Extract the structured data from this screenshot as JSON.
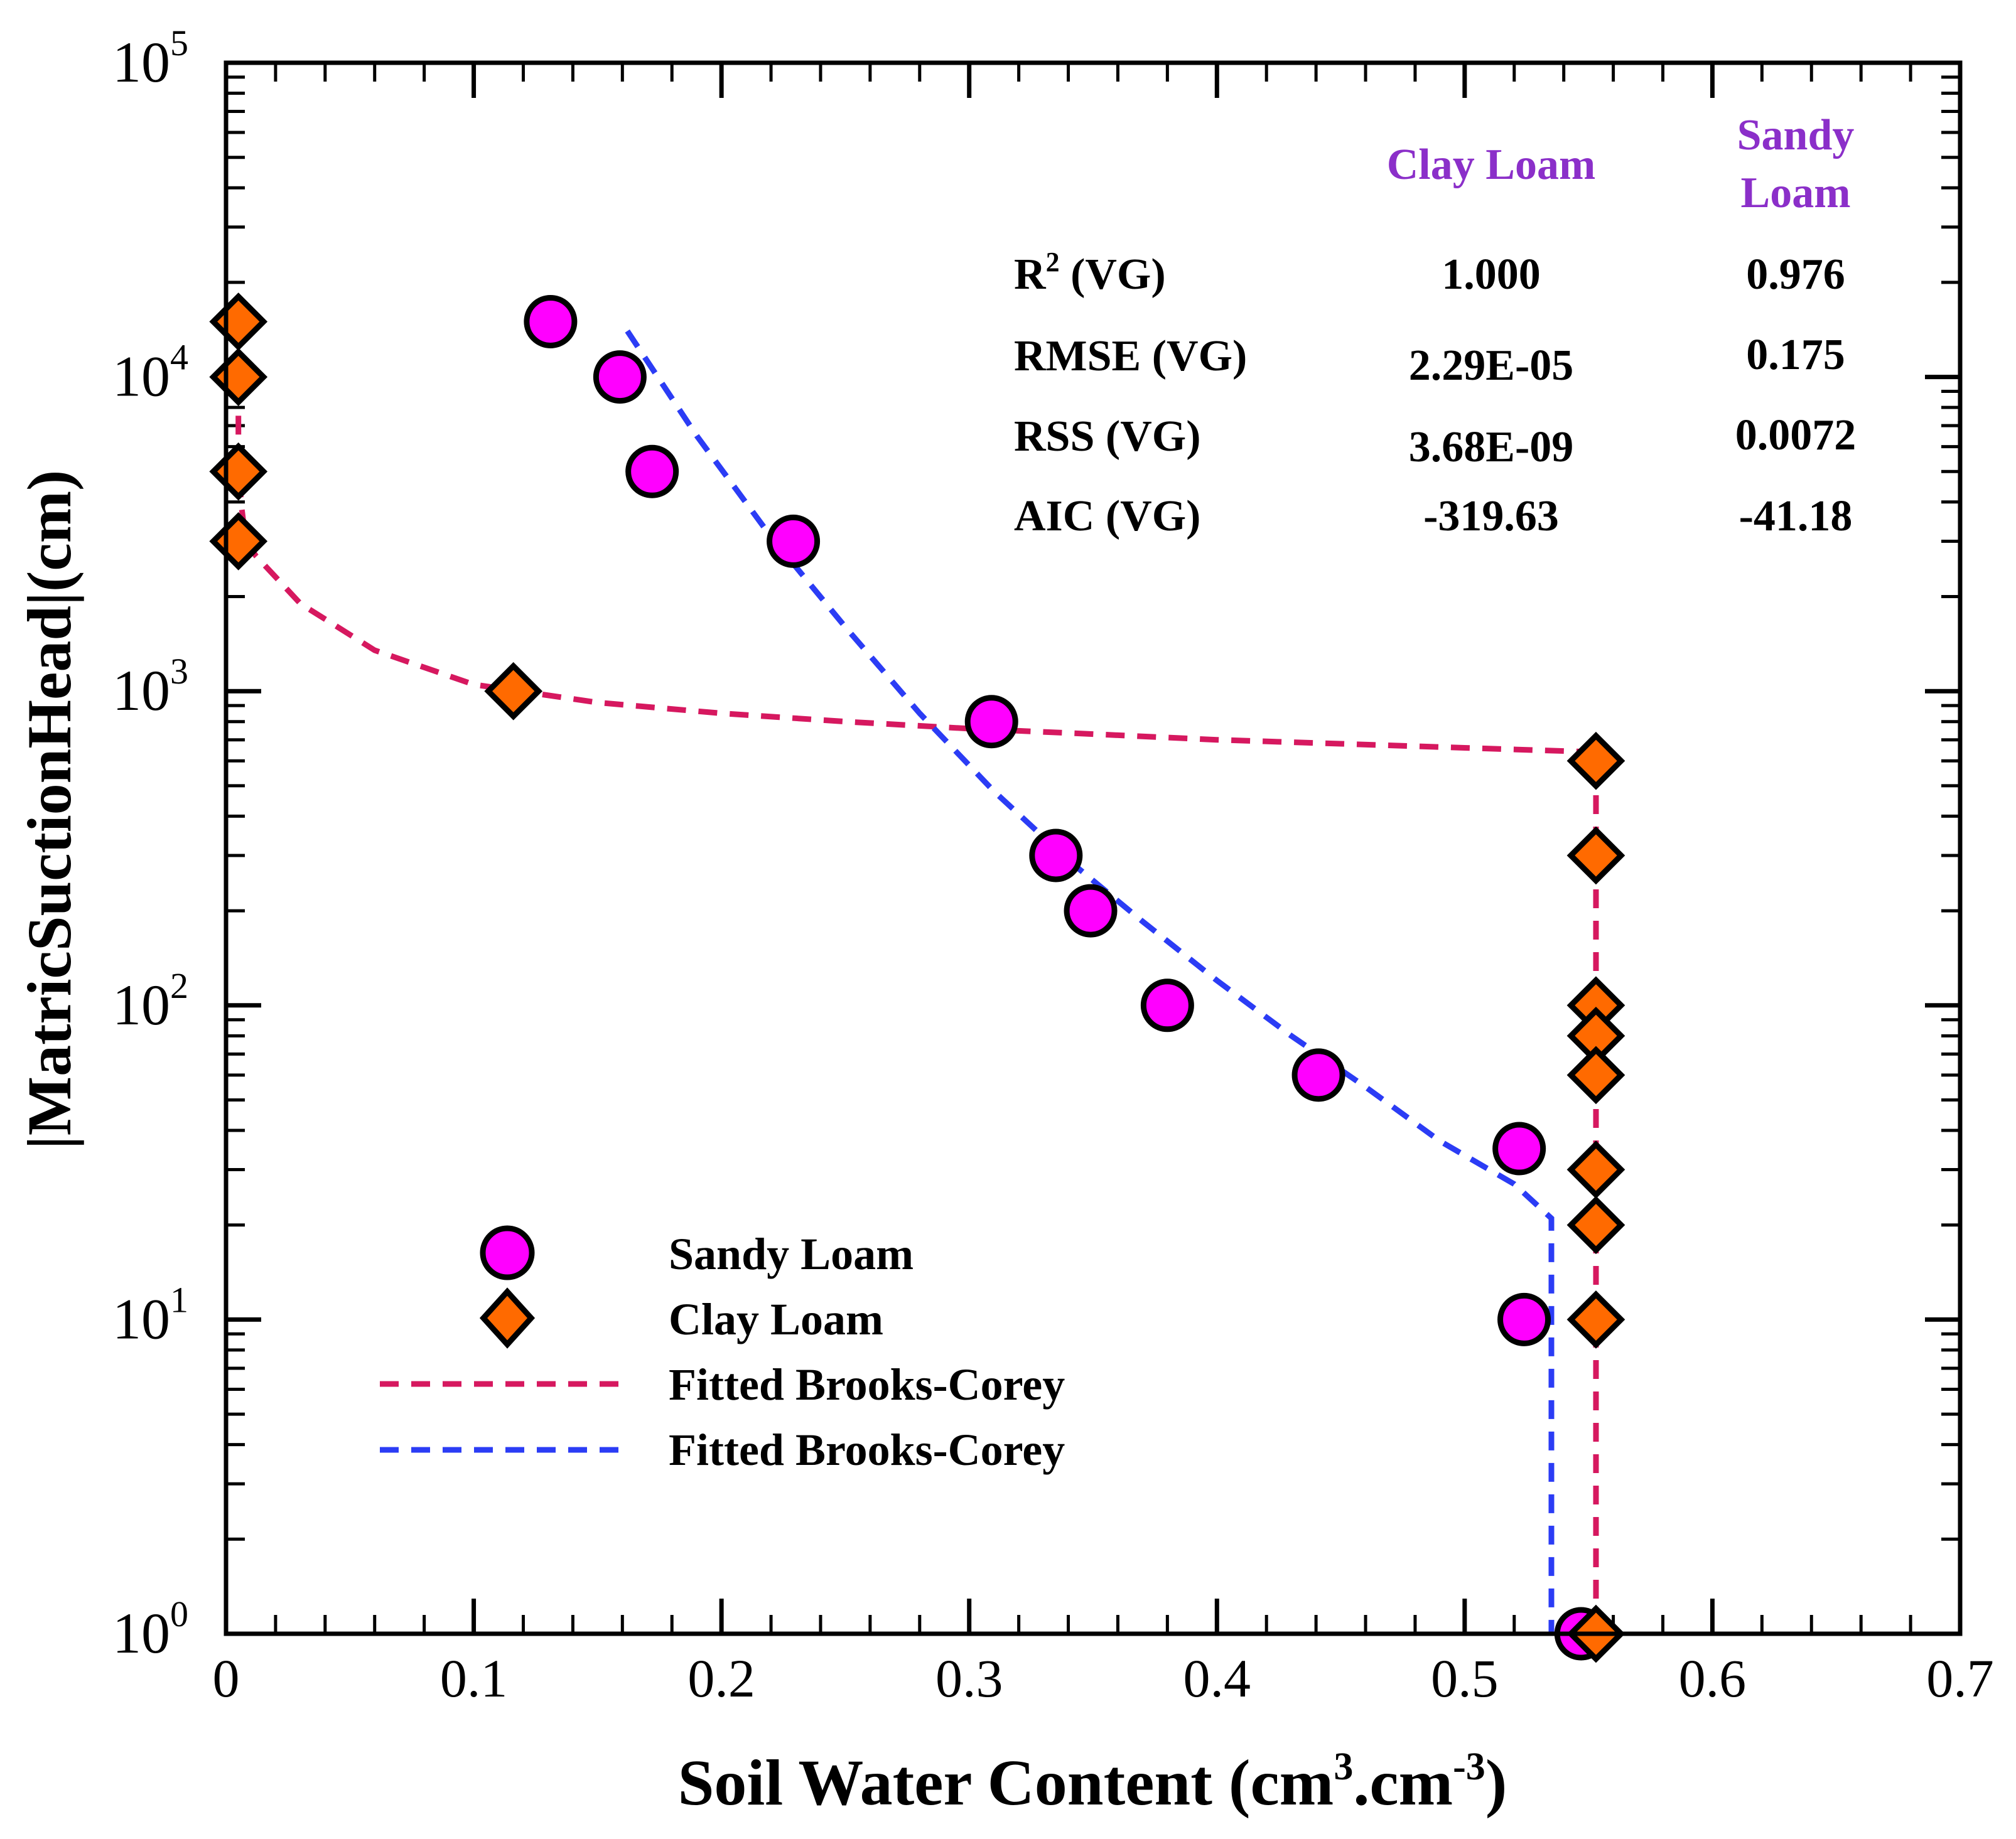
{
  "chart_data": {
    "type": "scatter",
    "title": "",
    "xlabel": "Soil Water Content (cm",
    "xlabel_sup1": "3",
    "xlabel_mid": ".cm",
    "xlabel_sup2": "-3",
    "xlabel_end": ")",
    "ylabel": "|MatricSuctionHead|(cm)",
    "xlim": [
      0,
      0.7
    ],
    "ylim": [
      1,
      100000
    ],
    "yscale": "log",
    "x_ticks": [
      0,
      0.1,
      0.2,
      0.3,
      0.4,
      0.5,
      0.6,
      0.7
    ],
    "x_tick_labels": [
      "0",
      "0.1",
      "0.2",
      "0.3",
      "0.4",
      "0.5",
      "0.6",
      "0.7"
    ],
    "y_ticks": [
      {
        "value": 1,
        "base": "10",
        "exp": "0"
      },
      {
        "value": 10,
        "base": "10",
        "exp": "1"
      },
      {
        "value": 100,
        "base": "10",
        "exp": "2"
      },
      {
        "value": 1000,
        "base": "10",
        "exp": "3"
      },
      {
        "value": 10000,
        "base": "10",
        "exp": "4"
      },
      {
        "value": 100000,
        "base": "10",
        "exp": "5"
      }
    ],
    "series": [
      {
        "name": "Sandy Loam",
        "kind": "scatter",
        "marker": "circle",
        "color": "#ff00ff",
        "points": [
          {
            "x": 0.131,
            "y": 15000
          },
          {
            "x": 0.159,
            "y": 10000
          },
          {
            "x": 0.172,
            "y": 5000
          },
          {
            "x": 0.229,
            "y": 3000
          },
          {
            "x": 0.309,
            "y": 800
          },
          {
            "x": 0.335,
            "y": 300
          },
          {
            "x": 0.349,
            "y": 200
          },
          {
            "x": 0.38,
            "y": 100
          },
          {
            "x": 0.441,
            "y": 60
          },
          {
            "x": 0.522,
            "y": 35
          },
          {
            "x": 0.524,
            "y": 10
          },
          {
            "x": 0.547,
            "y": 1
          }
        ]
      },
      {
        "name": "Clay Loam",
        "kind": "scatter",
        "marker": "diamond",
        "color": "#ff6a00",
        "points": [
          {
            "x": 0.005,
            "y": 15000
          },
          {
            "x": 0.005,
            "y": 10000
          },
          {
            "x": 0.005,
            "y": 5000
          },
          {
            "x": 0.005,
            "y": 3000
          },
          {
            "x": 0.116,
            "y": 1000
          },
          {
            "x": 0.553,
            "y": 600
          },
          {
            "x": 0.553,
            "y": 300
          },
          {
            "x": 0.553,
            "y": 100
          },
          {
            "x": 0.553,
            "y": 80
          },
          {
            "x": 0.553,
            "y": 60
          },
          {
            "x": 0.553,
            "y": 30
          },
          {
            "x": 0.553,
            "y": 20
          },
          {
            "x": 0.553,
            "y": 10
          },
          {
            "x": 0.553,
            "y": 1
          }
        ]
      },
      {
        "name": "Fitted Brooks-Corey",
        "kind": "line",
        "dash": true,
        "color": "#d6185f",
        "points": [
          {
            "x": 0.005,
            "y": 15000
          },
          {
            "x": 0.005,
            "y": 9000
          },
          {
            "x": 0.005,
            "y": 6000
          },
          {
            "x": 0.006,
            "y": 4000
          },
          {
            "x": 0.008,
            "y": 3000
          },
          {
            "x": 0.012,
            "y": 2700
          },
          {
            "x": 0.03,
            "y": 1900
          },
          {
            "x": 0.06,
            "y": 1350
          },
          {
            "x": 0.1,
            "y": 1050
          },
          {
            "x": 0.15,
            "y": 920
          },
          {
            "x": 0.2,
            "y": 850
          },
          {
            "x": 0.25,
            "y": 800
          },
          {
            "x": 0.3,
            "y": 760
          },
          {
            "x": 0.35,
            "y": 730
          },
          {
            "x": 0.4,
            "y": 700
          },
          {
            "x": 0.45,
            "y": 680
          },
          {
            "x": 0.5,
            "y": 660
          },
          {
            "x": 0.553,
            "y": 640
          },
          {
            "x": 0.553,
            "y": 1
          }
        ]
      },
      {
        "name": "Fitted Brooks-Corey",
        "kind": "line",
        "dash": true,
        "color": "#2b3cf5",
        "points": [
          {
            "x": 0.162,
            "y": 14000
          },
          {
            "x": 0.19,
            "y": 6500
          },
          {
            "x": 0.22,
            "y": 3100
          },
          {
            "x": 0.25,
            "y": 1600
          },
          {
            "x": 0.28,
            "y": 850
          },
          {
            "x": 0.31,
            "y": 480
          },
          {
            "x": 0.34,
            "y": 290
          },
          {
            "x": 0.37,
            "y": 185
          },
          {
            "x": 0.4,
            "y": 120
          },
          {
            "x": 0.43,
            "y": 80
          },
          {
            "x": 0.46,
            "y": 55
          },
          {
            "x": 0.49,
            "y": 37
          },
          {
            "x": 0.52,
            "y": 27
          },
          {
            "x": 0.535,
            "y": 21
          },
          {
            "x": 0.535,
            "y": 1
          }
        ]
      }
    ],
    "legend": {
      "placement": "bottom-left",
      "entries": [
        "Sandy Loam",
        "Clay Loam",
        "Fitted Brooks-Corey",
        "Fitted Brooks-Corey"
      ]
    },
    "stats_table": {
      "headers": [
        "Clay Loam",
        "Sandy",
        "Loam"
      ],
      "rows": [
        {
          "label": "R",
          "label_sup": "2",
          "label_rest": " (VG)",
          "clay": "1.000",
          "sandy": "0.976"
        },
        {
          "label": "RMSE (VG)",
          "label_sup": "",
          "label_rest": "",
          "clay": "2.29E-05",
          "sandy": "0.175"
        },
        {
          "label": "RSS (VG)",
          "label_sup": "",
          "label_rest": "",
          "clay": "3.68E-09",
          "sandy": "0.0072"
        },
        {
          "label": "AIC (VG)",
          "label_sup": "",
          "label_rest": "",
          "clay": "-319.63",
          "sandy": "-41.18"
        }
      ],
      "header_color": "#8b2fc9"
    }
  }
}
